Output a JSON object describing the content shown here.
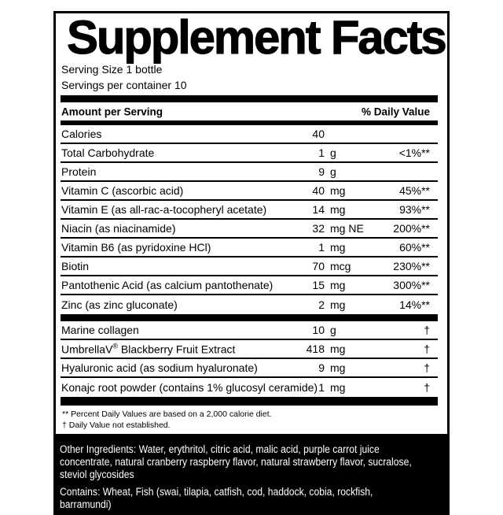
{
  "supplement": {
    "title": "Supplement Facts",
    "serving_size": "Serving Size 1 bottle",
    "servings_per_container": "Servings per container 10",
    "columns": {
      "amount": "Amount per Serving",
      "daily_value": "% Daily Value"
    },
    "nutrients": [
      {
        "name": "Calories",
        "amount": "40",
        "unit": "",
        "dv": ""
      },
      {
        "name": "Total Carbohydrate",
        "amount": "1",
        "unit": "g",
        "dv": "<1%**"
      },
      {
        "name": "Protein",
        "amount": "9",
        "unit": "g",
        "dv": ""
      },
      {
        "name": "Vitamin C (ascorbic acid)",
        "amount": "40",
        "unit": "mg",
        "dv": "45%**"
      },
      {
        "name": "Vitamin E (as all-rac-a-tocopheryl acetate)",
        "amount": "14",
        "unit": "mg",
        "dv": "93%**"
      },
      {
        "name": "Niacin (as niacinamide)",
        "amount": "32",
        "unit": "mg NE",
        "dv": "200%**"
      },
      {
        "name": "Vitamin B6 (as pyridoxine HCl)",
        "amount": "1",
        "unit": "mg",
        "dv": "60%**"
      },
      {
        "name": "Biotin",
        "amount": "70",
        "unit": "mcg",
        "dv": "230%**"
      },
      {
        "name": "Pantothenic Acid (as calcium pantothenate)",
        "amount": "15",
        "unit": "mg",
        "dv": "300%**"
      },
      {
        "name": "Zinc (as zinc gluconate)",
        "amount": "2",
        "unit": "mg",
        "dv": "14%**"
      }
    ],
    "botanicals": [
      {
        "name": "Marine collagen",
        "amount": "10",
        "unit": "g",
        "dv": "†"
      },
      {
        "name": "UmbrellaV",
        "name_sup": "®",
        "name_post": " Blackberry Fruit Extract",
        "amount": "418",
        "unit": "mg",
        "dv": "†"
      },
      {
        "name": "Hyaluronic acid (as sodium hyaluronate)",
        "amount": "9",
        "unit": "mg",
        "dv": "†"
      },
      {
        "name": "Konajc root powder (contains 1% glucosyl ceramide)",
        "amount": "1",
        "unit": "mg",
        "dv": "†"
      }
    ],
    "footnotes": [
      "** Percent Daily Values are based on a 2,000 calorie diet.",
      "† Daily Value not established."
    ]
  },
  "bottom_panel": {
    "other_ingredients_lines": [
      "Other Ingredients: Water, erythritol, citric acid, malic acid, purple carrot juice",
      "concentrate, natural cranberry raspberry flavor, natural strawberry flavor, sucralose,",
      "steviol glycosides"
    ],
    "contains_lines": [
      "Contains: Wheat, Fish (swai, tilapia, catfish, cod, haddock, cobia, rockfish,",
      "barramundi)"
    ]
  },
  "colors": {
    "ink": "#000000",
    "paper": "#ffffff",
    "panel_bg": "#000000",
    "panel_text": "#ffffff"
  }
}
